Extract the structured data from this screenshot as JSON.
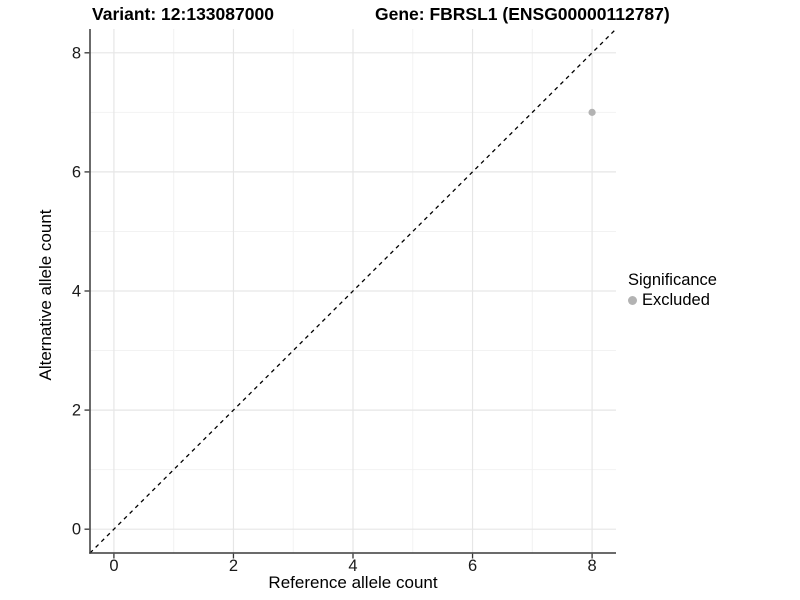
{
  "chart_data": {
    "type": "scatter",
    "title_variant": "Variant: 12:133087000",
    "title_gene": "Gene: FBRSL1 (ENSG00000112787)",
    "xlabel": "Reference allele count",
    "ylabel": "Alternative allele count",
    "xlim": [
      -0.4,
      8.4
    ],
    "ylim": [
      -0.4,
      8.4
    ],
    "x_major_ticks": [
      0,
      2,
      4,
      6,
      8
    ],
    "y_major_ticks": [
      0,
      2,
      4,
      6,
      8
    ],
    "x_minor_ticks": [
      1,
      3,
      5,
      7
    ],
    "y_minor_ticks": [
      1,
      3,
      5,
      7
    ],
    "grid": true,
    "identity_line": {
      "style": "dashed",
      "from": [
        -0.4,
        -0.4
      ],
      "to": [
        8.4,
        8.4
      ],
      "color": "#000000"
    },
    "series": [
      {
        "name": "Excluded",
        "color": "#b3b3b3",
        "points": [
          {
            "x": 8,
            "y": 7
          }
        ]
      }
    ],
    "legend": {
      "title": "Significance",
      "position": "right",
      "entries": [
        {
          "label": "Excluded",
          "color": "#b3b3b3"
        }
      ]
    },
    "colors": {
      "background": "#ffffff",
      "grid_major": "#e6e6e6",
      "grid_minor": "#f2f2f2",
      "axis_line": "#3a3a3a",
      "tick_mark": "#333333",
      "tick_text": "#1a1a1a"
    }
  }
}
